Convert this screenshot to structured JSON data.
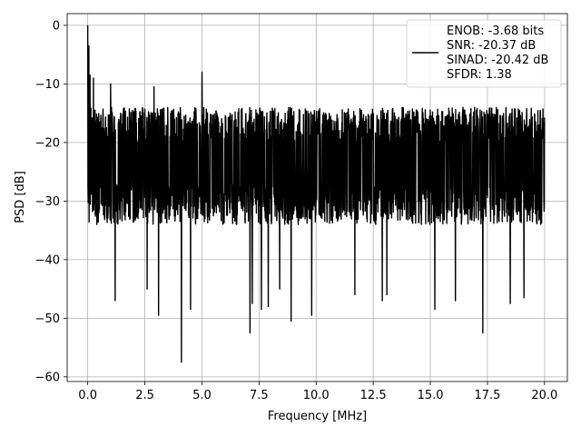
{
  "chart_data": {
    "type": "line",
    "title": "",
    "xlabel": "Frequency [MHz]",
    "ylabel": "PSD [dB]",
    "xlim": [
      -0.9,
      21.0
    ],
    "ylim": [
      -60.8,
      2.0
    ],
    "x_ticks": [
      0.0,
      2.5,
      5.0,
      7.5,
      10.0,
      12.5,
      15.0,
      17.5,
      20.0
    ],
    "x_tick_labels": [
      "0.0",
      "2.5",
      "5.0",
      "7.5",
      "10.0",
      "12.5",
      "15.0",
      "17.5",
      "20.0"
    ],
    "y_ticks": [
      0,
      -10,
      -20,
      -30,
      -40,
      -50,
      -60
    ],
    "y_tick_labels": [
      "0",
      "−10",
      "−20",
      "−30",
      "−40",
      "−50",
      "−60"
    ],
    "grid": true,
    "legend_position": "top-right",
    "series": [
      {
        "color": "#000000",
        "x_range": [
          0.0,
          20.0
        ],
        "peak": {
          "x": 0.0,
          "y": 0.0
        },
        "noise_upper_typical": -14,
        "noise_lower_typical": -34,
        "noise_median": -23,
        "notable_dips": [
          {
            "x": 1.2,
            "y": -47
          },
          {
            "x": 2.6,
            "y": -42
          },
          {
            "x": 2.6,
            "y": -45
          },
          {
            "x": 3.1,
            "y": -49.5
          },
          {
            "x": 4.1,
            "y": -57.5
          },
          {
            "x": 4.5,
            "y": -48.5
          },
          {
            "x": 7.1,
            "y": -52.5
          },
          {
            "x": 7.2,
            "y": -47.5
          },
          {
            "x": 7.6,
            "y": -48.5
          },
          {
            "x": 7.9,
            "y": -48
          },
          {
            "x": 8.4,
            "y": -45
          },
          {
            "x": 8.9,
            "y": -50.5
          },
          {
            "x": 9.8,
            "y": -49.5
          },
          {
            "x": 11.7,
            "y": -46
          },
          {
            "x": 12.9,
            "y": -47
          },
          {
            "x": 13.1,
            "y": -46
          },
          {
            "x": 15.2,
            "y": -48.5
          },
          {
            "x": 16.1,
            "y": -47
          },
          {
            "x": 17.3,
            "y": -52.5
          },
          {
            "x": 18.5,
            "y": -47.5
          },
          {
            "x": 19.1,
            "y": -46.5
          }
        ],
        "notable_peaks": [
          {
            "x": 0.05,
            "y": -3.5
          },
          {
            "x": 0.1,
            "y": -8.5
          },
          {
            "x": 0.25,
            "y": -9
          },
          {
            "x": 5.0,
            "y": -8
          },
          {
            "x": 1.0,
            "y": -10
          },
          {
            "x": 2.9,
            "y": -10.5
          }
        ]
      }
    ],
    "legend": {
      "lines": [
        "ENOB: -3.68 bits",
        "SNR: -20.37 dB",
        "SINAD: -20.42 dB",
        "SFDR: 1.38"
      ]
    }
  }
}
